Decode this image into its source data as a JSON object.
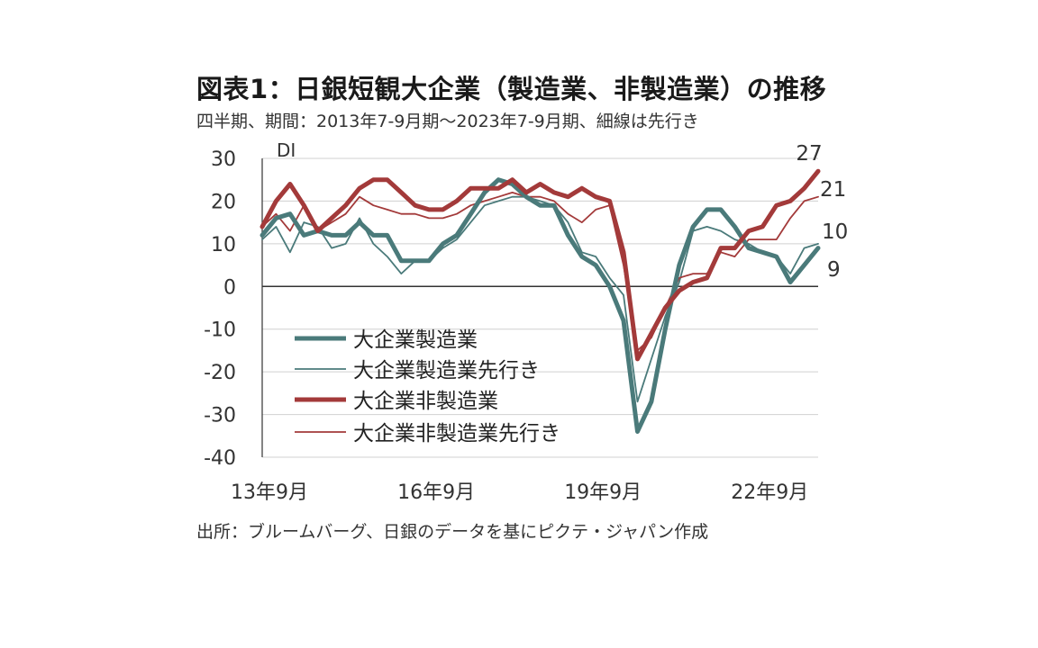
{
  "title": "図表1：日銀短観大企業（製造業、非製造業）の推移",
  "subtitle": "四半期、期間：2013年7-9月期～2023年7-9月期、細線は先行き",
  "source": "出所：ブルームバーグ、日銀のデータを基にピクテ・ジャパン作成",
  "chart_data": {
    "type": "line",
    "ylabel": "DI",
    "ylim": [
      -40,
      30
    ],
    "yticks": [
      30,
      20,
      10,
      0,
      -10,
      -20,
      -30,
      -40
    ],
    "grid": true,
    "legend_position": "lower-left",
    "x_tick_labels": [
      {
        "index": 0,
        "label": "13年9月"
      },
      {
        "index": 12,
        "label": "16年9月"
      },
      {
        "index": 24,
        "label": "19年9月"
      },
      {
        "index": 36,
        "label": "22年9月"
      }
    ],
    "end_labels": [
      {
        "series": 2,
        "label": "27"
      },
      {
        "series": 3,
        "label": "21"
      },
      {
        "series": 1,
        "label": "10"
      },
      {
        "series": 0,
        "label": "9"
      }
    ],
    "x": [
      "2013Q3",
      "2013Q4",
      "2014Q1",
      "2014Q2",
      "2014Q3",
      "2014Q4",
      "2015Q1",
      "2015Q2",
      "2015Q3",
      "2015Q4",
      "2016Q1",
      "2016Q2",
      "2016Q3",
      "2016Q4",
      "2017Q1",
      "2017Q2",
      "2017Q3",
      "2017Q4",
      "2018Q1",
      "2018Q2",
      "2018Q3",
      "2018Q4",
      "2019Q1",
      "2019Q2",
      "2019Q3",
      "2019Q4",
      "2020Q1",
      "2020Q2",
      "2020Q3",
      "2020Q4",
      "2021Q1",
      "2021Q2",
      "2021Q3",
      "2021Q4",
      "2022Q1",
      "2022Q2",
      "2022Q3",
      "2022Q4",
      "2023Q1",
      "2023Q2",
      "2023Q3"
    ],
    "series": [
      {
        "name": "大企業製造業",
        "color": "#4a7a7a",
        "width": "thick",
        "values": [
          12,
          16,
          17,
          12,
          13,
          12,
          12,
          15,
          12,
          12,
          6,
          6,
          6,
          10,
          12,
          17,
          22,
          25,
          24,
          21,
          19,
          19,
          12,
          7,
          5,
          0,
          -8,
          -34,
          -27,
          -10,
          5,
          14,
          18,
          18,
          14,
          9,
          8,
          7,
          1,
          5,
          9
        ]
      },
      {
        "name": "大企業製造業先行き",
        "color": "#4a7a7a",
        "width": "thin",
        "values": [
          11,
          14,
          8,
          15,
          14,
          9,
          10,
          16,
          10,
          7,
          3,
          6,
          6,
          9,
          11,
          15,
          19,
          20,
          21,
          21,
          20,
          19,
          15,
          8,
          7,
          2,
          -2,
          -27,
          -17,
          -7,
          1,
          13,
          14,
          13,
          11,
          10,
          8,
          7,
          3,
          9,
          10
        ]
      },
      {
        "name": "大企業非製造業",
        "color": "#a33a3a",
        "width": "thick",
        "values": [
          14,
          20,
          24,
          19,
          13,
          16,
          19,
          23,
          25,
          25,
          22,
          19,
          18,
          18,
          20,
          23,
          23,
          23,
          25,
          22,
          24,
          22,
          21,
          23,
          21,
          20,
          8,
          -17,
          -11,
          -5,
          -1,
          1,
          2,
          9,
          9,
          13,
          14,
          19,
          20,
          23,
          27
        ]
      },
      {
        "name": "大企業非製造業先行き",
        "color": "#a33a3a",
        "width": "thin",
        "values": [
          14,
          17,
          13,
          19,
          13,
          15,
          17,
          21,
          19,
          18,
          17,
          17,
          16,
          16,
          17,
          19,
          20,
          21,
          22,
          21,
          21,
          20,
          17,
          15,
          18,
          19,
          5,
          -15,
          -12,
          -5,
          2,
          3,
          3,
          8,
          7,
          11,
          11,
          11,
          16,
          20,
          21
        ]
      }
    ]
  }
}
